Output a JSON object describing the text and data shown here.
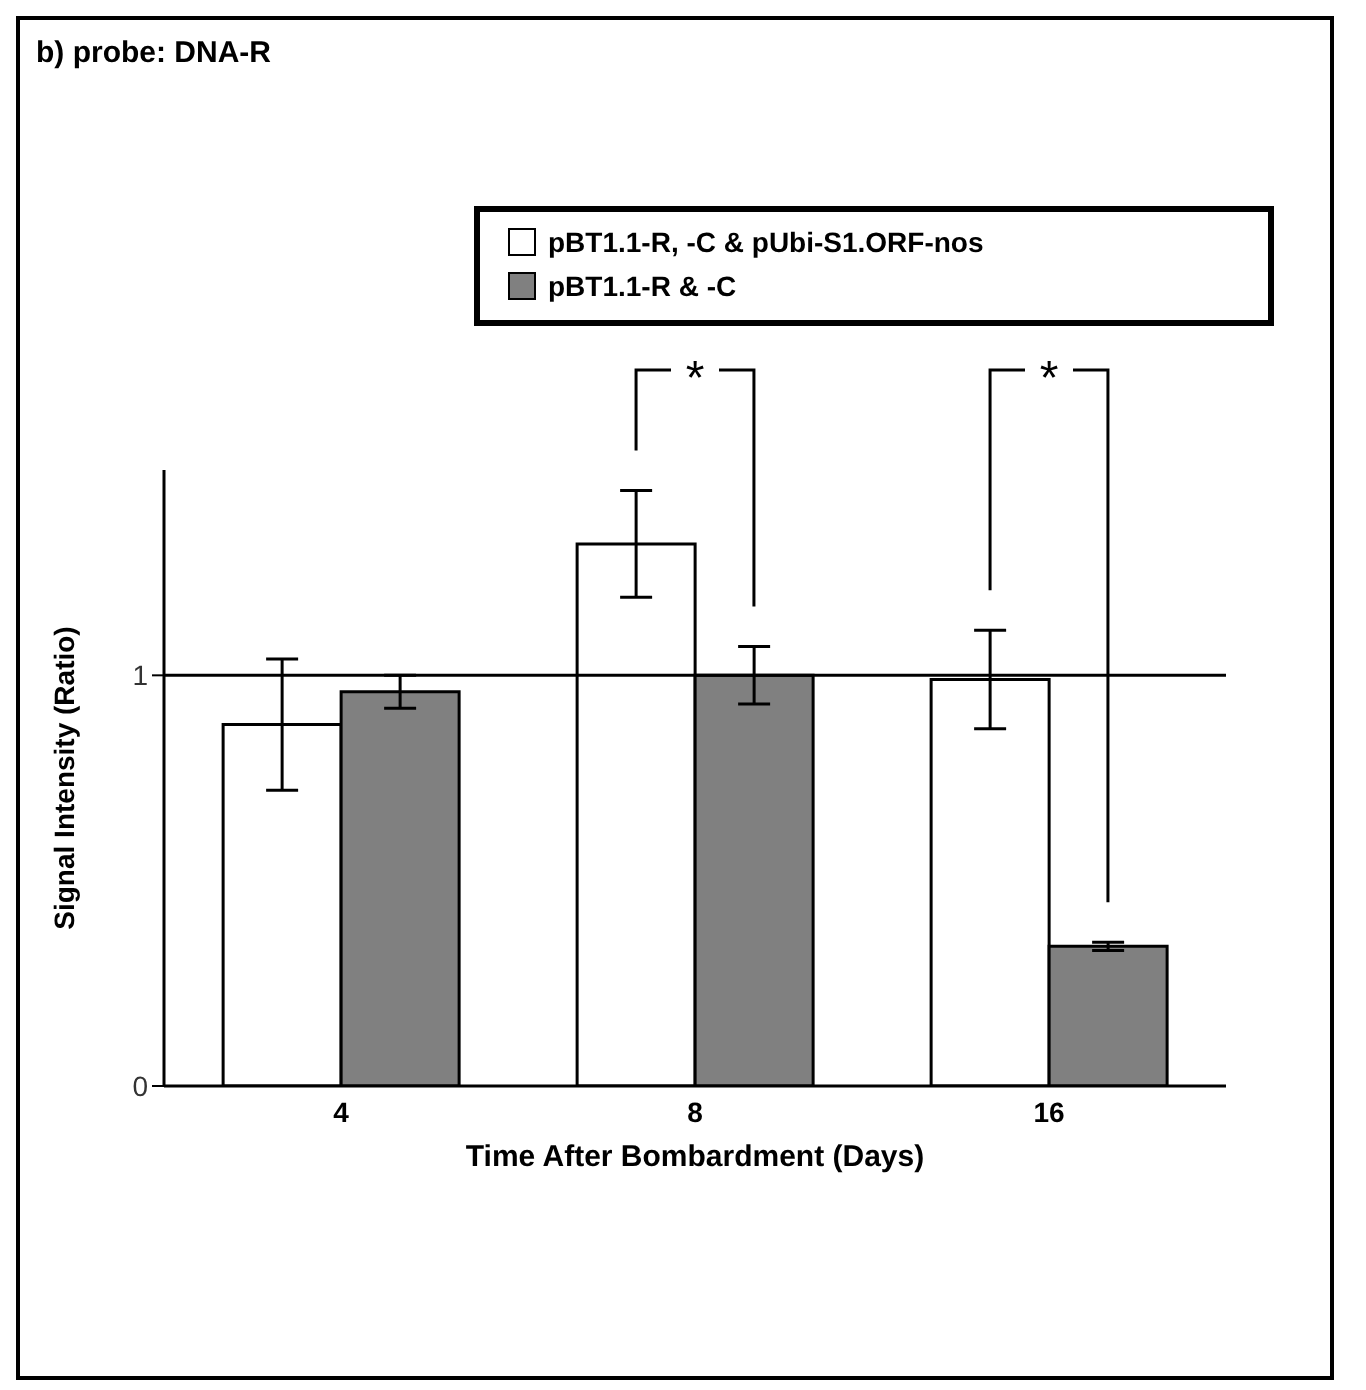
{
  "chart_data": {
    "type": "bar",
    "title": "b) probe: DNA-R",
    "xlabel": "Time After Bombardment (Days)",
    "ylabel": "Signal Intensity (Ratio)",
    "categories": [
      "4",
      "8",
      "16"
    ],
    "series": [
      {
        "name": "pBT1.1-R, -C & pUbi-S1.ORF-nos",
        "color": "#ffffff",
        "values": [
          0.88,
          1.32,
          0.99
        ],
        "errors": [
          0.16,
          0.13,
          0.12
        ]
      },
      {
        "name": "pBT1.1-R & -C",
        "color": "#808080",
        "values": [
          0.96,
          1.0,
          0.34
        ],
        "errors": [
          0.04,
          0.07,
          0.01
        ]
      }
    ],
    "ylim": [
      0,
      1.5
    ],
    "yticks": [
      0,
      1
    ],
    "grid": false,
    "legend": "top right",
    "ref_lines": [
      {
        "axis": "y",
        "value": 1,
        "color": "#000000"
      }
    ],
    "annotations": [
      "*",
      "*"
    ]
  }
}
